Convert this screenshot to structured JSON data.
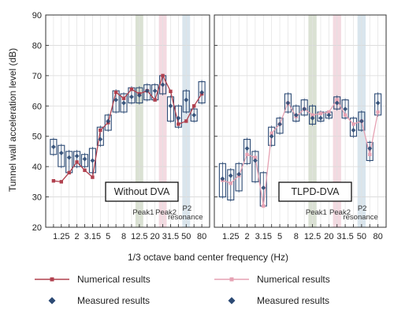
{
  "chart_data": {
    "type": "line",
    "ylabel": "Tunnel wall acceleration level (dB)",
    "xlabel": "1/3 octave band center frequency (Hz)",
    "ylim": [
      20,
      90
    ],
    "yticks": [
      20,
      30,
      40,
      50,
      60,
      70,
      80,
      90
    ],
    "categories": [
      "1",
      "1.25",
      "1.6",
      "2",
      "2.5",
      "3.15",
      "4",
      "5",
      "6.3",
      "8",
      "10",
      "12.5",
      "16",
      "20",
      "25",
      "31.5",
      "40",
      "50",
      "63",
      "80"
    ],
    "xtick_labels": [
      "1.25",
      "2",
      "3.15",
      "5",
      "8",
      "12.5",
      "20",
      "31.5",
      "50",
      "80"
    ],
    "xtick_label_indices": [
      1,
      3,
      5,
      7,
      9,
      11,
      13,
      15,
      17,
      19
    ],
    "grid": true,
    "panels": [
      {
        "label": "Without DVA",
        "shaded_bands": [
          {
            "label": "Peak1",
            "from": 10.5,
            "to": 11.5,
            "color": "#d3dccb"
          },
          {
            "label": "Peak2",
            "from": 13.5,
            "to": 14.5,
            "color": "#f1d3dc"
          },
          {
            "label": "P2 resonance",
            "from": 16.5,
            "to": 17.5,
            "color": "#d2e0ea"
          }
        ],
        "series": [
          {
            "name": "Numerical results",
            "color": "#b0404e",
            "values": [
              35.3,
              35.0,
              38.0,
              41.5,
              38.8,
              36.5,
              52.0,
              54.5,
              64.5,
              62.5,
              65.5,
              64.0,
              65.0,
              62.0,
              70.0,
              64.8,
              54.0,
              55.0,
              60.0,
              64.0
            ]
          },
          {
            "name": "Measured results",
            "color": "#2c4a74",
            "values": [
              46.5,
              44.5,
              43.0,
              43.5,
              42.5,
              42.0,
              49.0,
              55.0,
              62.0,
              61.0,
              63.0,
              63.5,
              65.0,
              65.0,
              67.0,
              60.0,
              56.0,
              62.0,
              57.0,
              64.5
            ]
          }
        ],
        "boxes": [
          [
            44,
            49
          ],
          [
            40,
            47
          ],
          [
            38,
            45
          ],
          [
            40,
            45
          ],
          [
            40,
            44
          ],
          [
            38,
            46
          ],
          [
            47,
            53
          ],
          [
            52,
            57
          ],
          [
            58,
            65
          ],
          [
            58,
            64
          ],
          [
            61,
            66
          ],
          [
            61,
            66
          ],
          [
            62,
            67
          ],
          [
            62,
            67
          ],
          [
            64,
            70
          ],
          [
            55,
            63
          ],
          [
            53,
            60
          ],
          [
            58,
            65
          ],
          [
            55,
            59
          ],
          [
            61,
            68
          ]
        ]
      },
      {
        "label": "TLPD-DVA",
        "shaded_bands": [
          {
            "label": "Peak1",
            "from": 10.5,
            "to": 11.5,
            "color": "#d3dccb"
          },
          {
            "label": "Peak2",
            "from": 13.5,
            "to": 14.5,
            "color": "#f1d3dc"
          },
          {
            "label": "P2 resonance",
            "from": 16.5,
            "to": 17.5,
            "color": "#d2e0ea"
          }
        ],
        "series": [
          {
            "name": "Numerical results",
            "color": "#e6a2b3",
            "values": [
              35.5,
              34.5,
              37.0,
              44.0,
              43.0,
              27.0,
              51.0,
              54.0,
              61.0,
              56.5,
              59.0,
              57.0,
              57.5,
              58.0,
              62.0,
              57.0,
              54.0,
              55.0,
              44.0,
              58.0
            ]
          },
          {
            "name": "Measured results",
            "color": "#2c4a74",
            "values": [
              36.0,
              37.0,
              37.5,
              46.0,
              42.0,
              33.0,
              50.0,
              54.0,
              61.0,
              57.0,
              59.0,
              56.0,
              56.0,
              57.0,
              61.0,
              59.0,
              52.0,
              55.0,
              46.0,
              61.0
            ]
          }
        ],
        "boxes": [
          [
            30,
            41
          ],
          [
            29,
            39
          ],
          [
            32,
            41
          ],
          [
            41,
            49
          ],
          [
            35,
            45
          ],
          [
            27,
            38
          ],
          [
            47,
            53
          ],
          [
            51,
            56
          ],
          [
            58,
            64
          ],
          [
            55,
            60
          ],
          [
            57,
            62
          ],
          [
            54,
            60
          ],
          [
            55,
            58
          ],
          [
            56,
            58
          ],
          [
            59,
            63
          ],
          [
            56,
            62
          ],
          [
            50,
            56
          ],
          [
            52,
            58
          ],
          [
            42,
            48
          ],
          [
            57,
            64
          ]
        ]
      }
    ],
    "legend": [
      {
        "label": "Numerical results",
        "kind": "line-marker",
        "color": "#b0404e"
      },
      {
        "label": "Measured results",
        "kind": "diamond",
        "color": "#2c4a74"
      },
      {
        "label": "Numerical results",
        "kind": "line-marker",
        "color": "#e6a2b3"
      },
      {
        "label": "Measured results",
        "kind": "diamond",
        "color": "#2c4a74"
      }
    ]
  }
}
